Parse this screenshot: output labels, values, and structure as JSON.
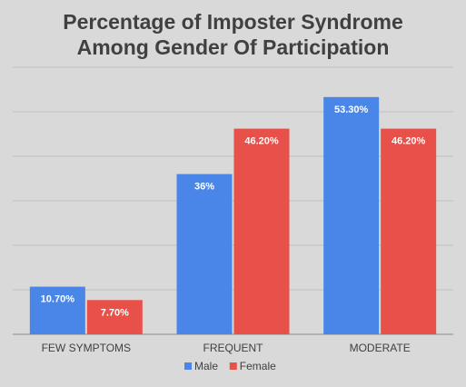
{
  "chart_data": {
    "type": "bar",
    "title_lines": [
      "Percentage of Imposter Syndrome",
      "Among Gender Of Participation"
    ],
    "categories": [
      "FEW SYMPTOMS",
      "FREQUENT",
      "MODERATE"
    ],
    "series": [
      {
        "name": "Male",
        "values": [
          10.7,
          36,
          53.3
        ],
        "labels": [
          "10.70%",
          "36%",
          "53.30%"
        ],
        "color": "#4a86e8"
      },
      {
        "name": "Female",
        "values": [
          7.7,
          46.2,
          46.2
        ],
        "labels": [
          "7.70%",
          "46.20%",
          "46.20%"
        ],
        "color": "#e8514a"
      }
    ],
    "ylim": [
      0,
      60
    ],
    "grid": true,
    "legend_position": "bottom",
    "background_color": "#d9d9d9"
  }
}
